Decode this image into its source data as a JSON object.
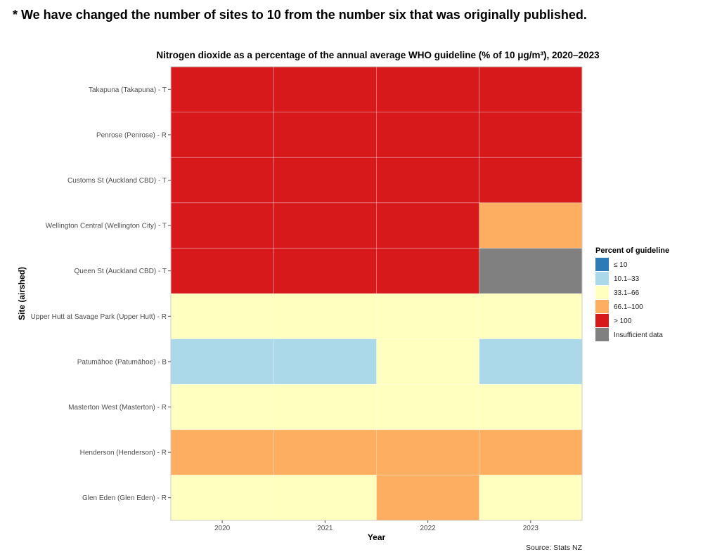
{
  "notice": "* We have changed the number of sites to 10 from the number six that was originally published.",
  "source": "Source: Stats NZ",
  "chart_data": {
    "type": "heatmap",
    "title": "Nitrogen dioxide as a percentage of the annual average WHO guideline (% of 10 μg/m³), 2020–2023",
    "xlabel": "Year",
    "ylabel": "Site (airshed)",
    "x": [
      "2020",
      "2021",
      "2022",
      "2023"
    ],
    "y": [
      "Takapuna (Takapuna) - T",
      "Penrose (Penrose) - R",
      "Customs St (Auckland CBD) - T",
      "Wellington Central (Wellington City) - T",
      "Queen St (Auckland CBD) - T",
      "Upper Hutt at Savage Park (Upper Hutt) - R",
      "Patumāhoe (Patumāhoe) - B",
      "Masterton West (Masterton) - R",
      "Henderson (Henderson) - R",
      "Glen Eden (Glen Eden) - R"
    ],
    "values": [
      [
        "> 100",
        "> 100",
        "> 100",
        "> 100"
      ],
      [
        "> 100",
        "> 100",
        "> 100",
        "> 100"
      ],
      [
        "> 100",
        "> 100",
        "> 100",
        "> 100"
      ],
      [
        "> 100",
        "> 100",
        "> 100",
        "66.1–100"
      ],
      [
        "> 100",
        "> 100",
        "> 100",
        "Insufficient data"
      ],
      [
        "33.1–66",
        "33.1–66",
        "33.1–66",
        "33.1–66"
      ],
      [
        "10.1–33",
        "10.1–33",
        "33.1–66",
        "10.1–33"
      ],
      [
        "33.1–66",
        "33.1–66",
        "33.1–66",
        "33.1–66"
      ],
      [
        "66.1–100",
        "66.1–100",
        "66.1–100",
        "66.1–100"
      ],
      [
        "33.1–66",
        "33.1–66",
        "66.1–100",
        "33.1–66"
      ]
    ],
    "legend": {
      "title": "Percent of guideline",
      "position": "right",
      "items": [
        {
          "label": "≤ 10",
          "color": "#2c7bb6"
        },
        {
          "label": "10.1–33",
          "color": "#abd9e9"
        },
        {
          "label": "33.1–66",
          "color": "#ffffbf"
        },
        {
          "label": "66.1–100",
          "color": "#fdae61"
        },
        {
          "label": "> 100",
          "color": "#d7191c"
        },
        {
          "label": "Insufficient data",
          "color": "#808080"
        }
      ]
    },
    "grid": true
  }
}
